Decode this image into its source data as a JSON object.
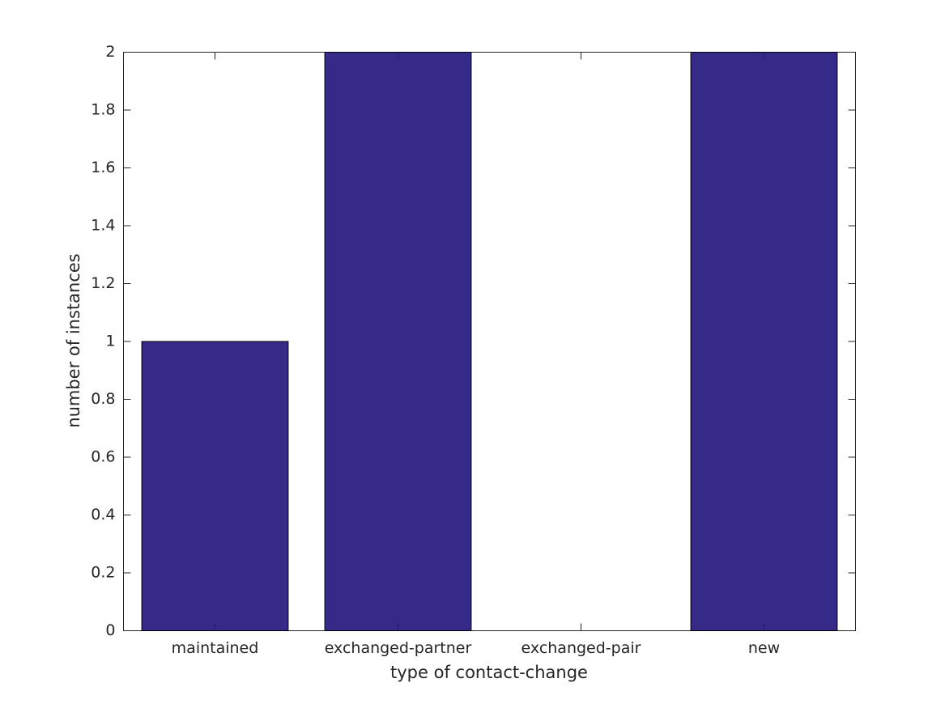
{
  "chart_data": {
    "type": "bar",
    "xlabel": "type of contact-change",
    "ylabel": "number of instances",
    "categories": [
      "maintained",
      "exchanged-partner",
      "exchanged-pair",
      "new"
    ],
    "values": [
      1,
      2,
      0,
      2
    ],
    "color": "#352a87",
    "ylim": [
      0,
      2
    ],
    "yticks": [
      0,
      0.2,
      0.4,
      0.6,
      0.8,
      1,
      1.2,
      1.4,
      1.6,
      1.8,
      2
    ],
    "grid": false
  }
}
